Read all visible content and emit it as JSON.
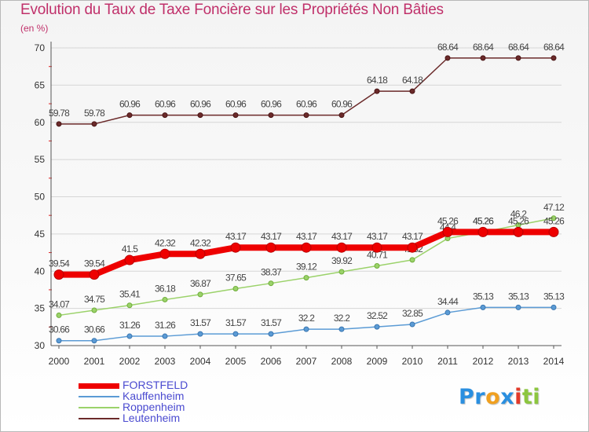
{
  "chart_data": {
    "type": "line",
    "title": "Evolution du Taux de Taxe Foncière sur les Propriétés Non Bâties",
    "unit_label": "(en %)",
    "xlabel": "",
    "ylabel": "(en %)",
    "ylim": [
      30,
      70
    ],
    "yticks": [
      "30",
      "35",
      "40",
      "45",
      "50",
      "55",
      "60",
      "65",
      "70"
    ],
    "categories": [
      "2000",
      "2001",
      "2002",
      "2003",
      "2004",
      "2005",
      "2006",
      "2007",
      "2008",
      "2009",
      "2010",
      "2011",
      "2012",
      "2013",
      "2014"
    ],
    "series": [
      {
        "name": "Leutenheim",
        "color": "#6b2a2a",
        "values": [
          59.78,
          59.78,
          60.96,
          60.96,
          60.96,
          60.96,
          60.96,
          60.96,
          60.96,
          64.18,
          64.18,
          68.64,
          68.64,
          68.64,
          68.64
        ],
        "labels": [
          "59.78",
          "59.78",
          "60.96",
          "60.96",
          "60.96",
          "60.96",
          "60.96",
          "60.96",
          "60.96",
          "64.18",
          "64.18",
          "68.64",
          "68.64",
          "68.64",
          "68.64"
        ]
      },
      {
        "name": "Roppenheim",
        "color": "#9bd26a",
        "values": [
          34.07,
          34.75,
          35.41,
          36.18,
          36.87,
          37.65,
          38.37,
          39.12,
          39.92,
          40.71,
          41.52,
          44.4,
          45.26,
          46.2,
          47.12
        ],
        "labels": [
          "34.07",
          "34.75",
          "35.41",
          "36.18",
          "36.87",
          "37.65",
          "38.37",
          "39.12",
          "39.92",
          "40.71",
          "41.52",
          "44.4",
          "45.26",
          "46.2",
          "47.12"
        ]
      },
      {
        "name": "Kauffenheim",
        "color": "#5b9bd5",
        "values": [
          30.66,
          30.66,
          31.26,
          31.26,
          31.57,
          31.57,
          31.57,
          32.2,
          32.2,
          32.52,
          32.85,
          34.44,
          35.13,
          35.13,
          35.13
        ],
        "labels": [
          "30.66",
          "30.66",
          "31.26",
          "31.26",
          "31.57",
          "31.57",
          "31.57",
          "32.2",
          "32.2",
          "32.52",
          "32.85",
          "34.44",
          "35.13",
          "35.13",
          "35.13"
        ]
      },
      {
        "name": "FORSTFELD",
        "color": "#ee0000",
        "values": [
          39.54,
          39.54,
          41.5,
          42.32,
          42.32,
          43.17,
          43.17,
          43.17,
          43.17,
          43.17,
          43.17,
          45.26,
          45.26,
          45.26,
          45.26
        ],
        "labels": [
          "39.54",
          "39.54",
          "41.5",
          "42.32",
          "42.32",
          "43.17",
          "43.17",
          "43.17",
          "43.17",
          "43.17",
          "43.17",
          "45.26",
          "45.26",
          "45.26",
          "45.26"
        ]
      }
    ]
  },
  "legend": [
    {
      "name": "FORSTFELD",
      "color": "#ee0000",
      "thickness": 7
    },
    {
      "name": "Kauffenheim",
      "color": "#5b9bd5",
      "thickness": 2
    },
    {
      "name": "Roppenheim",
      "color": "#9bd26a",
      "thickness": 2
    },
    {
      "name": "Leutenheim",
      "color": "#6b2a2a",
      "thickness": 2
    }
  ],
  "logo": {
    "letters": [
      "P",
      "r",
      "o",
      "x",
      "i",
      "t",
      "i"
    ],
    "colors": [
      "#2a8fe0",
      "#2a8fe0",
      "#f0a020",
      "#2a8fe0",
      "#e23a2a",
      "#8cc63f",
      "#8cc63f"
    ]
  }
}
